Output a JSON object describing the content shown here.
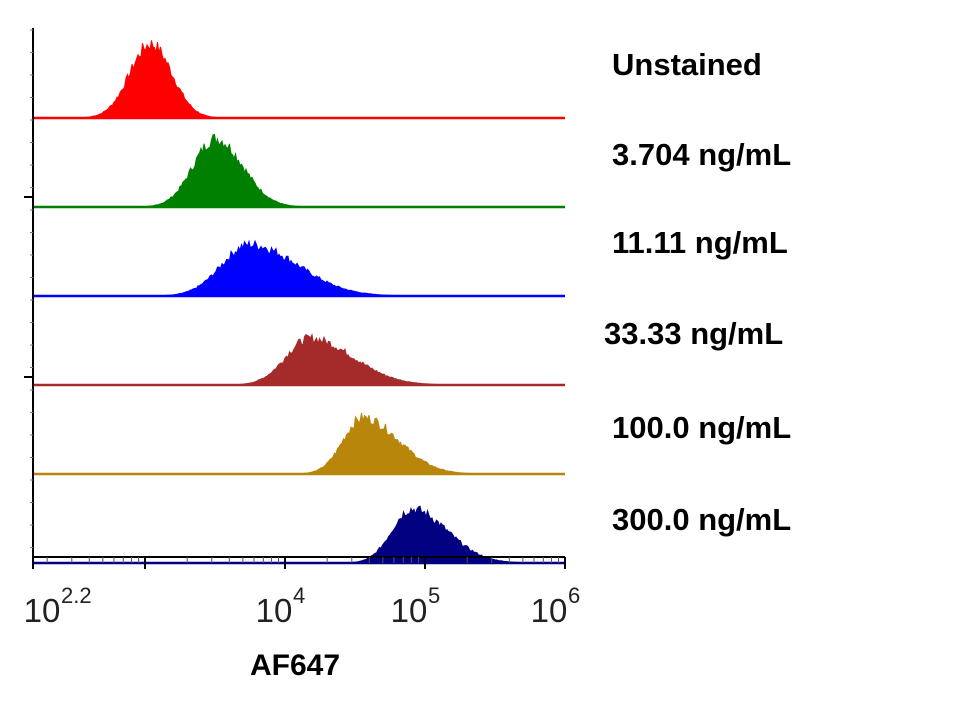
{
  "chart_data": {
    "type": "area",
    "subtype": "stacked-histogram-overlay",
    "xscale": "log10",
    "xlim": [
      158.5,
      1000000
    ],
    "xlabel": "AF647",
    "xticks": [
      {
        "value": 158.5,
        "base": "10",
        "exp": "2.2"
      },
      {
        "value": 10000,
        "base": "10",
        "exp": "4"
      },
      {
        "value": 100000,
        "base": "10",
        "exp": "5"
      },
      {
        "value": 1000000,
        "base": "10",
        "exp": "6"
      }
    ],
    "ylabel": "",
    "legend_placement": "right",
    "series": [
      {
        "name": "Unstained",
        "color": "#ff0000",
        "peak_x": 1100,
        "peak_height": 0.92,
        "spread": 0.15,
        "skew": 1.0
      },
      {
        "name": "3.704 ng/mL",
        "color": "#008000",
        "peak_x": 3200,
        "peak_height": 0.85,
        "spread": 0.16,
        "skew": 1.2
      },
      {
        "name": "11.11 ng/mL",
        "color": "#0000ff",
        "peak_x": 5600,
        "peak_height": 0.64,
        "spread": 0.2,
        "skew": 1.7
      },
      {
        "name": "33.33 ng/mL",
        "color": "#a52a2a",
        "peak_x": 15000,
        "peak_height": 0.58,
        "spread": 0.17,
        "skew": 1.8
      },
      {
        "name": "100.0 ng/mL",
        "color": "#b8860b",
        "peak_x": 36000,
        "peak_height": 0.7,
        "spread": 0.14,
        "skew": 1.8
      },
      {
        "name": "300.0 ng/mL",
        "color": "#000080",
        "peak_x": 80000,
        "peak_height": 0.67,
        "spread": 0.14,
        "skew": 1.8
      }
    ]
  }
}
